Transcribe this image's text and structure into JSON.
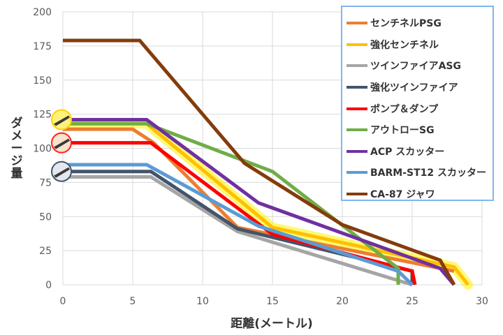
{
  "chart_data": {
    "type": "line",
    "xlabel": "距離(メートル)",
    "ylabel": "ダメージ量",
    "xlim": [
      0,
      30
    ],
    "ylim": [
      0,
      200
    ],
    "xticks": [
      "0",
      "5",
      "10",
      "15",
      "20",
      "25",
      "30"
    ],
    "yticks": [
      "0",
      "25",
      "50",
      "75",
      "100",
      "125",
      "150",
      "175",
      "200"
    ],
    "grid": true,
    "legend_position": "top-right",
    "series": [
      {
        "name": "センチネルPSG",
        "color": "#ed7d31",
        "points": [
          [
            0,
            114
          ],
          [
            5,
            114
          ],
          [
            6.5,
            104
          ],
          [
            12.5,
            42
          ],
          [
            28,
            10
          ]
        ]
      },
      {
        "name": "強化センチネル",
        "color": "#ffc000",
        "highlight": true,
        "points": [
          [
            0,
            118
          ],
          [
            6,
            118
          ],
          [
            15,
            42
          ],
          [
            28,
            13
          ],
          [
            29,
            0
          ]
        ]
      },
      {
        "name": "ツインファイアASG",
        "color": "#a5a5a5",
        "points": [
          [
            0,
            79
          ],
          [
            6.3,
            79
          ],
          [
            12.5,
            39
          ],
          [
            25,
            0
          ]
        ]
      },
      {
        "name": "強化ツインファイア",
        "color": "#44546a",
        "points": [
          [
            0,
            83
          ],
          [
            6.3,
            83
          ],
          [
            12.5,
            41
          ],
          [
            25,
            10
          ],
          [
            25,
            0
          ]
        ]
      },
      {
        "name": "ポンプ＆ダンプ",
        "color": "#ff0000",
        "points": [
          [
            0,
            104
          ],
          [
            6.3,
            104
          ],
          [
            15,
            37
          ],
          [
            25,
            10
          ],
          [
            25.2,
            0
          ]
        ]
      },
      {
        "name": "アウトローSG",
        "color": "#70ad47",
        "points": [
          [
            0,
            118
          ],
          [
            6,
            118
          ],
          [
            15,
            83
          ],
          [
            24,
            12
          ],
          [
            24,
            0
          ]
        ]
      },
      {
        "name": "ACP スカッター",
        "color": "#7030a0",
        "points": [
          [
            0,
            121
          ],
          [
            6,
            121
          ],
          [
            14,
            60
          ],
          [
            27,
            12
          ],
          [
            28,
            0
          ]
        ]
      },
      {
        "name": "BARM-ST12 スカッター",
        "color": "#5b9bd5",
        "points": [
          [
            0,
            88
          ],
          [
            6,
            88
          ],
          [
            14,
            43
          ],
          [
            24,
            10
          ],
          [
            25,
            0
          ]
        ]
      },
      {
        "name": "CA-87 ジャワ",
        "color": "#843c0c",
        "points": [
          [
            0,
            179
          ],
          [
            5.5,
            179
          ],
          [
            13,
            89
          ],
          [
            20,
            44
          ],
          [
            27,
            18
          ],
          [
            28,
            0
          ]
        ]
      }
    ],
    "highlight_color": "#fff200"
  }
}
